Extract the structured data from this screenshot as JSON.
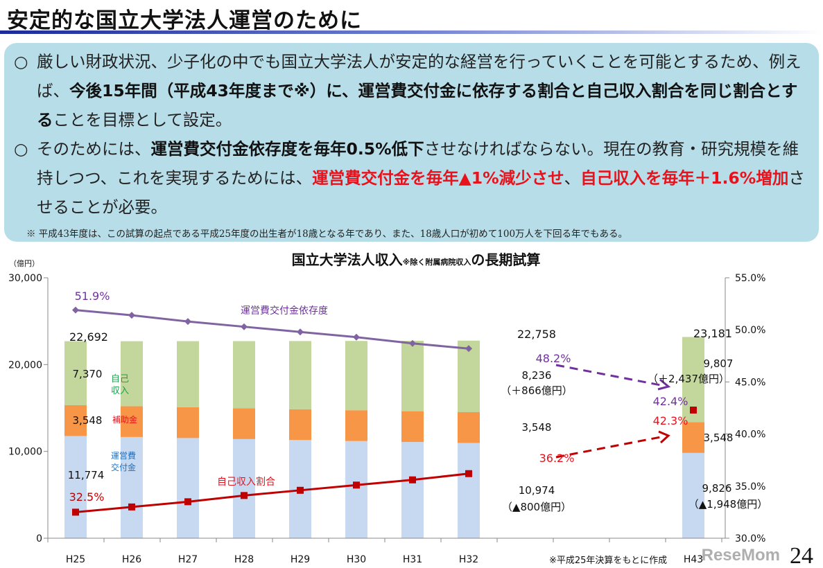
{
  "slide": {
    "title": "安定的な国立大学法人運営のために",
    "page_number": "24",
    "watermark": "ReseMom"
  },
  "box": {
    "bullet": "○",
    "p1": [
      {
        "t": "厳しい財政状況、少子化の中でも国立大学法人が安定的な経営を行っていくことを可能とするため、例えば、",
        "s": "n"
      },
      {
        "t": "今後15年間（平成43年度まで※）に、運営費交付金に依存する割合と自己収入割合を同じ割合とする",
        "s": "b"
      },
      {
        "t": "ことを目標として設定。",
        "s": "n"
      }
    ],
    "p2": [
      {
        "t": "そのためには、",
        "s": "n"
      },
      {
        "t": "運営費交付金依存度を毎年0.5%低下",
        "s": "b"
      },
      {
        "t": "させなければならない。現在の教育・研究規模を維持しつつ、これを実現するためには、",
        "s": "n"
      },
      {
        "t": "運営費交付金を毎年▲1%減少させ",
        "s": "r"
      },
      {
        "t": "、",
        "s": "n"
      },
      {
        "t": "自己収入を毎年＋1.6%増加",
        "s": "r"
      },
      {
        "t": "させることが必要。",
        "s": "n"
      }
    ],
    "note": "※ 平成43年度は、この試算の起点である平成25年度の出生者が18歳となる年であり、また、18歳人口が初めて100万人を下回る年でもある。"
  },
  "chart_data": {
    "type": "bar+line",
    "title_main": "国立大学法人収入",
    "title_note": "※除く附属病院収入",
    "title_tail": "の長期試算",
    "ylabel": "（億円）",
    "ylim": [
      0,
      30000
    ],
    "y_ticks": [
      "0",
      "10,000",
      "20,000",
      "30,000"
    ],
    "y2lim": [
      30,
      55
    ],
    "y2_ticks": [
      "30.0%",
      "35.0%",
      "40.0%",
      "45.0%",
      "50.0%",
      "55.0%"
    ],
    "categories": [
      "H25",
      "H26",
      "H27",
      "H28",
      "H29",
      "H30",
      "H31",
      "H32",
      "H43"
    ],
    "stacked_series": [
      {
        "name": "運営費交付金",
        "color": "#c6d9f1",
        "values": [
          11774,
          11657,
          11540,
          11424,
          11309,
          11195,
          11084,
          10974,
          9826
        ]
      },
      {
        "name": "補助金",
        "color": "#f79646",
        "values": [
          3548,
          3548,
          3548,
          3548,
          3548,
          3548,
          3548,
          3548,
          3548
        ]
      },
      {
        "name": "自己収入",
        "color": "#c3d69b",
        "values": [
          7370,
          7488,
          7608,
          7730,
          7853,
          7979,
          8106,
          8236,
          9807
        ]
      }
    ],
    "line_series": [
      {
        "name": "運営費交付金依存度",
        "color": "#8064a2",
        "values": [
          51.9,
          51.4,
          50.8,
          50.3,
          49.8,
          49.3,
          48.7,
          48.2
        ],
        "target": 42.4
      },
      {
        "name": "自己収入割合",
        "color": "#c00000",
        "values": [
          32.5,
          33.0,
          33.5,
          34.1,
          34.6,
          35.1,
          35.6,
          36.2
        ],
        "target": 42.3
      }
    ],
    "legend_label_colors": {
      "own": "#1fa050",
      "sub": "#e8121c",
      "grant": "#2070c0"
    },
    "annotations": {
      "dep_start": "51.9%",
      "own_start": "32.5%",
      "dep_h32": "48.2%",
      "own_h32": "36.2%",
      "dep_h43": "42.4%",
      "own_h43": "42.3%",
      "total_h25": "22,692",
      "own_h25": "7,370",
      "sub_h25": "3,548",
      "grant_h25": "11,774",
      "total_h32": "22,758",
      "own_h32_v": "8,236",
      "own_h32_d": "（＋866億円）",
      "sub_h32": "3,548",
      "grant_h32": "10,974",
      "grant_h32_d": "（▲800億円）",
      "total_h43": "23,181",
      "own_h43_v": "9,807",
      "own_h43_d": "（＋2,437億円）",
      "sub_h43": "3,548",
      "grant_h43": "9,826",
      "grant_h43_d": "（▲1,948億円）",
      "lbl_own": "自己",
      "lbl_own2": "収入",
      "lbl_sub": "補助金",
      "lbl_grant": "運営費",
      "lbl_grant2": "交付金",
      "footnote": "※平成25年決算をもとに作成"
    }
  }
}
